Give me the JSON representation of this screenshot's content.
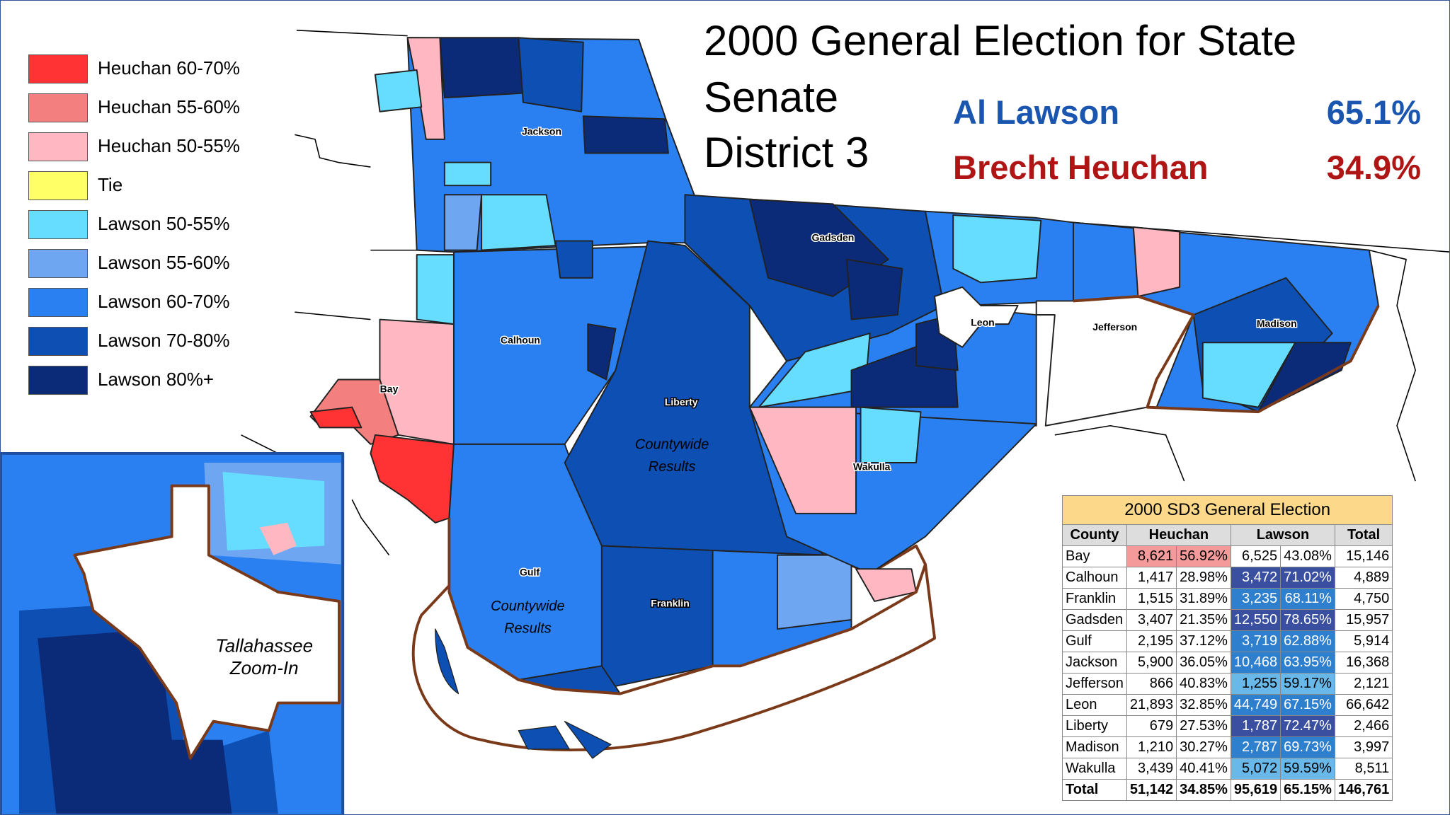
{
  "title": [
    "2000 General Election for State",
    "Senate",
    "District 3"
  ],
  "candidates": [
    {
      "name": "Al Lawson",
      "pct": "65.1%",
      "color": "#1a56b0"
    },
    {
      "name": "Brecht Heuchan",
      "pct": "34.9%",
      "color": "#b01515"
    }
  ],
  "legend": [
    {
      "label": "Heuchan 60-70%",
      "color": "#ff3333"
    },
    {
      "label": "Heuchan 55-60%",
      "color": "#f47f7f"
    },
    {
      "label": "Heuchan 50-55%",
      "color": "#ffb8c2"
    },
    {
      "label": "Tie",
      "color": "#ffff66"
    },
    {
      "label": "Lawson 50-55%",
      "color": "#66dcff"
    },
    {
      "label": "Lawson 55-60%",
      "color": "#6ea6f2"
    },
    {
      "label": "Lawson 60-70%",
      "color": "#2a80f0"
    },
    {
      "label": "Lawson 70-80%",
      "color": "#0d4fb3"
    },
    {
      "label": "Lawson 80%+",
      "color": "#0b2a78"
    }
  ],
  "map": {
    "county_labels": [
      "Jackson",
      "Gadsden",
      "Calhoun",
      "Liberty",
      "Bay",
      "Leon",
      "Jefferson",
      "Madison",
      "Wakulla",
      "Gulf",
      "Franklin"
    ],
    "notes": [
      [
        "Countywide",
        "Results"
      ],
      [
        "Countywide",
        "Results"
      ],
      [
        "Tallahassee",
        "Zoom-In"
      ]
    ]
  },
  "table": {
    "title": "2000 SD3 General Election",
    "header": [
      "County",
      "Heuchan",
      "Lawson",
      "Total"
    ],
    "rows": [
      [
        "Bay",
        "8,621",
        "56.92%",
        "6,525",
        "43.08%",
        "15,146"
      ],
      [
        "Calhoun",
        "1,417",
        "28.98%",
        "3,472",
        "71.02%",
        "4,889"
      ],
      [
        "Franklin",
        "1,515",
        "31.89%",
        "3,235",
        "68.11%",
        "4,750"
      ],
      [
        "Gadsden",
        "3,407",
        "21.35%",
        "12,550",
        "78.65%",
        "15,957"
      ],
      [
        "Gulf",
        "2,195",
        "37.12%",
        "3,719",
        "62.88%",
        "5,914"
      ],
      [
        "Jackson",
        "5,900",
        "36.05%",
        "10,468",
        "63.95%",
        "16,368"
      ],
      [
        "Jefferson",
        "866",
        "40.83%",
        "1,255",
        "59.17%",
        "2,121"
      ],
      [
        "Leon",
        "21,893",
        "32.85%",
        "44,749",
        "67.15%",
        "66,642"
      ],
      [
        "Liberty",
        "679",
        "27.53%",
        "1,787",
        "72.47%",
        "2,466"
      ],
      [
        "Madison",
        "1,210",
        "30.27%",
        "2,787",
        "69.73%",
        "3,997"
      ],
      [
        "Wakulla",
        "3,439",
        "40.41%",
        "5,072",
        "59.59%",
        "8,511"
      ]
    ],
    "total": [
      "Total",
      "51,142",
      "34.85%",
      "95,619",
      "65.15%",
      "146,761"
    ]
  }
}
